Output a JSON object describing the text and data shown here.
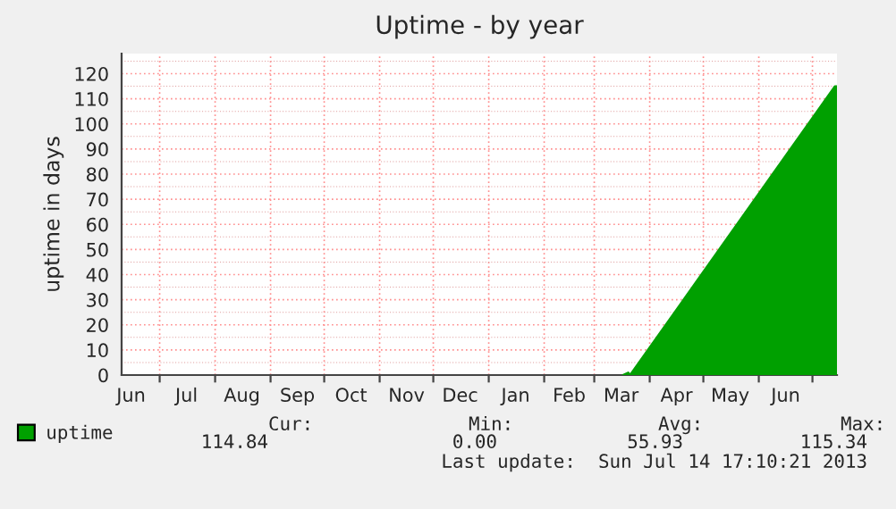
{
  "chart_data": {
    "type": "area",
    "title": "Uptime - by year",
    "ylabel": "uptime in days",
    "x": [
      "2013-03-17",
      "2013-03-20",
      "2013-03-21",
      "2013-07-13T12:00",
      "2013-07-14T17:10"
    ],
    "series": [
      {
        "name": "uptime",
        "color": "#00a000",
        "values": [
          0,
          1,
          0,
          115,
          115
        ]
      }
    ],
    "xlim": [
      "2012-06-09T17:10",
      "2013-07-14T17:10"
    ],
    "xticks": [
      {
        "value": "2012-06-15",
        "label": "Jun"
      },
      {
        "value": "2012-07-01",
        "label": null
      },
      {
        "value": "2012-07-16",
        "label": "Jul"
      },
      {
        "value": "2012-08-01",
        "label": null
      },
      {
        "value": "2012-08-16",
        "label": "Aug"
      },
      {
        "value": "2012-09-01",
        "label": null
      },
      {
        "value": "2012-09-16",
        "label": "Sep"
      },
      {
        "value": "2012-10-01",
        "label": null
      },
      {
        "value": "2012-10-16",
        "label": "Oct"
      },
      {
        "value": "2012-11-01",
        "label": null
      },
      {
        "value": "2012-11-16",
        "label": "Nov"
      },
      {
        "value": "2012-12-01",
        "label": null
      },
      {
        "value": "2012-12-16",
        "label": "Dec"
      },
      {
        "value": "2013-01-01",
        "label": null
      },
      {
        "value": "2013-01-16",
        "label": "Jan"
      },
      {
        "value": "2013-02-01",
        "label": null
      },
      {
        "value": "2013-02-15",
        "label": "Feb"
      },
      {
        "value": "2013-03-01",
        "label": null
      },
      {
        "value": "2013-03-16",
        "label": "Mar"
      },
      {
        "value": "2013-04-01",
        "label": null
      },
      {
        "value": "2013-04-16",
        "label": "Apr"
      },
      {
        "value": "2013-05-01",
        "label": null
      },
      {
        "value": "2013-05-16",
        "label": "May"
      },
      {
        "value": "2013-06-01",
        "label": null
      },
      {
        "value": "2013-06-16",
        "label": "Jun"
      },
      {
        "value": "2013-07-01",
        "label": null
      }
    ],
    "ylim": [
      0,
      128
    ],
    "yticks": [
      0,
      {
        "value": 5,
        "label": null
      },
      10,
      {
        "value": 15,
        "label": null
      },
      20,
      {
        "value": 25,
        "label": null
      },
      30,
      {
        "value": 35,
        "label": null
      },
      40,
      {
        "value": 45,
        "label": null
      },
      50,
      {
        "value": 55,
        "label": null
      },
      60,
      {
        "value": 65,
        "label": null
      },
      70,
      {
        "value": 75,
        "label": null
      },
      80,
      {
        "value": 85,
        "label": null
      },
      90,
      {
        "value": 95,
        "label": null
      },
      100,
      {
        "value": 105,
        "label": null
      },
      110,
      {
        "value": 115,
        "label": null
      },
      120,
      {
        "value": 125,
        "label": null
      }
    ],
    "grid": true,
    "legend": "bottom left",
    "annotations": [
      "Cur:",
      "114.84",
      "Min:",
      "0.00",
      "Avg:",
      "55.93",
      "Max:",
      "115.34",
      "Last update:  Sun Jul 14 17:10:21 2013"
    ]
  }
}
